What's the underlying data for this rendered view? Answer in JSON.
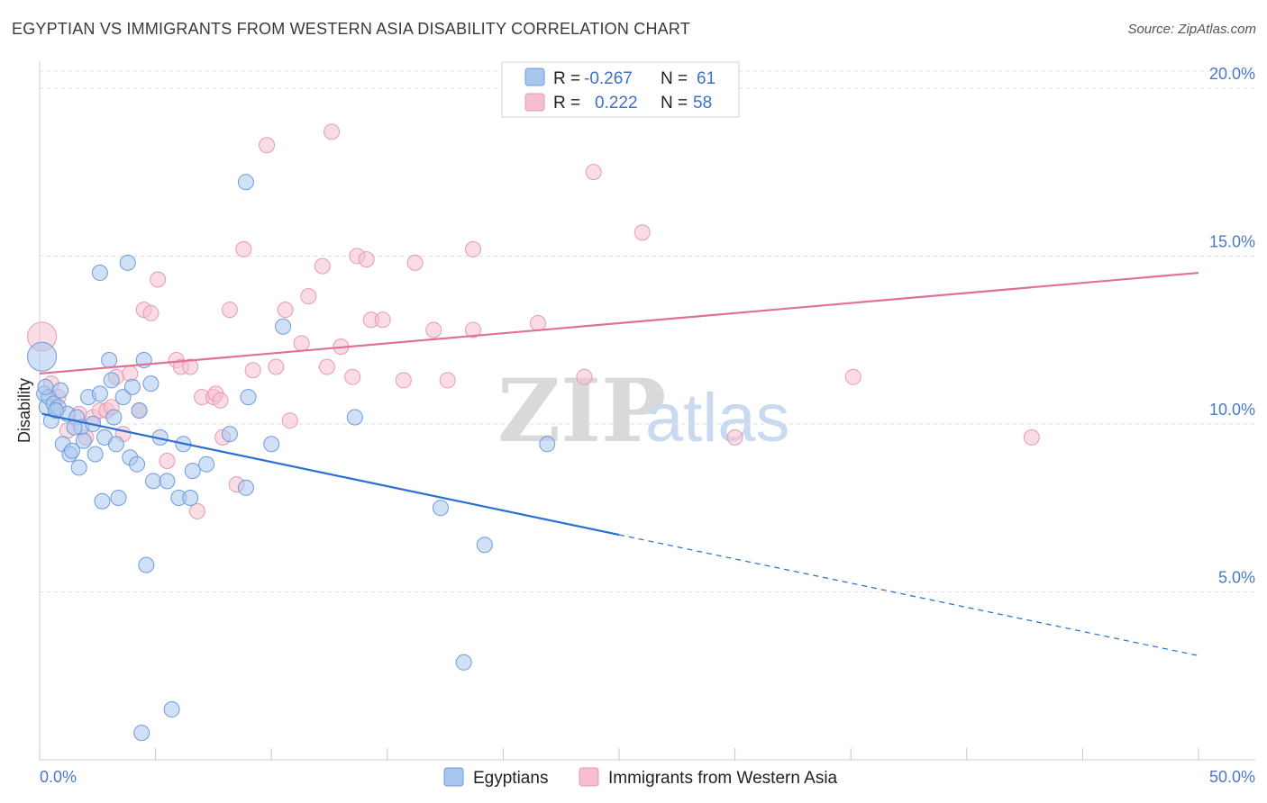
{
  "title": "EGYPTIAN VS IMMIGRANTS FROM WESTERN ASIA DISABILITY CORRELATION CHART",
  "source": "Source: ZipAtlas.com",
  "watermark": {
    "zip": "ZIP",
    "atlas": "atlas"
  },
  "colors": {
    "blue_fill": "#a9c6ef",
    "blue_stroke": "#6f9bd9",
    "blue_line": "#2a6fd1",
    "pink_fill": "#f6bfd0",
    "pink_stroke": "#e89ab2",
    "pink_line": "#e0709a",
    "tick_text": "#4a78c8",
    "grid": "#dddddd"
  },
  "legend": {
    "r_label": "R =",
    "n_label": "N =",
    "rows": [
      {
        "series": "Egyptians",
        "r": "-0.267",
        "n": "61"
      },
      {
        "series": "Immigrants from Western Asia",
        "r": "0.222",
        "n": "58"
      }
    ]
  },
  "chart_data": {
    "type": "scatter",
    "title": "EGYPTIAN VS IMMIGRANTS FROM WESTERN ASIA DISABILITY CORRELATION CHART",
    "xlabel": "",
    "ylabel": "Disability",
    "xlim": [
      0,
      50
    ],
    "ylim": [
      0,
      20.8
    ],
    "x_tick_labels": [
      "0.0%",
      "50.0%"
    ],
    "y_ticks": [
      5,
      10,
      15,
      20
    ],
    "y_tick_labels": [
      "5.0%",
      "10.0%",
      "15.0%",
      "20.0%"
    ],
    "grid": true,
    "legend_position": "top-center",
    "series": [
      {
        "name": "Egyptians",
        "color": "#a9c6ef",
        "trend": {
          "x0": 0.1,
          "y0": 10.3,
          "x1": 25,
          "y1": 6.7,
          "dashed_to_x": 50,
          "dashed_to_y": 3.1
        },
        "points": [
          {
            "x": 0.1,
            "y": 12.0,
            "big": true
          },
          {
            "x": 0.2,
            "y": 10.9
          },
          {
            "x": 0.3,
            "y": 10.5
          },
          {
            "x": 0.4,
            "y": 10.8
          },
          {
            "x": 0.5,
            "y": 10.1
          },
          {
            "x": 0.6,
            "y": 10.6
          },
          {
            "x": 0.8,
            "y": 10.5
          },
          {
            "x": 0.9,
            "y": 11.0
          },
          {
            "x": 1.0,
            "y": 9.4
          },
          {
            "x": 1.2,
            "y": 10.3
          },
          {
            "x": 1.3,
            "y": 9.1
          },
          {
            "x": 1.4,
            "y": 9.2
          },
          {
            "x": 1.6,
            "y": 10.2
          },
          {
            "x": 1.7,
            "y": 8.7
          },
          {
            "x": 1.8,
            "y": 9.9
          },
          {
            "x": 1.9,
            "y": 9.5
          },
          {
            "x": 2.1,
            "y": 10.8
          },
          {
            "x": 2.3,
            "y": 10.0
          },
          {
            "x": 2.4,
            "y": 9.1
          },
          {
            "x": 2.6,
            "y": 14.5
          },
          {
            "x": 2.6,
            "y": 10.9
          },
          {
            "x": 2.7,
            "y": 7.7
          },
          {
            "x": 2.8,
            "y": 9.6
          },
          {
            "x": 3.0,
            "y": 11.9
          },
          {
            "x": 3.1,
            "y": 11.3
          },
          {
            "x": 3.2,
            "y": 10.2
          },
          {
            "x": 3.3,
            "y": 9.4
          },
          {
            "x": 3.4,
            "y": 7.8
          },
          {
            "x": 3.6,
            "y": 10.8
          },
          {
            "x": 3.8,
            "y": 14.8
          },
          {
            "x": 3.9,
            "y": 9.0
          },
          {
            "x": 4.0,
            "y": 11.1
          },
          {
            "x": 4.2,
            "y": 8.8
          },
          {
            "x": 4.3,
            "y": 10.4
          },
          {
            "x": 4.4,
            "y": 0.8
          },
          {
            "x": 4.5,
            "y": 11.9
          },
          {
            "x": 4.6,
            "y": 5.8
          },
          {
            "x": 4.8,
            "y": 11.2
          },
          {
            "x": 4.9,
            "y": 8.3
          },
          {
            "x": 5.2,
            "y": 9.6
          },
          {
            "x": 5.5,
            "y": 8.3
          },
          {
            "x": 5.7,
            "y": 1.5
          },
          {
            "x": 6.0,
            "y": 7.8
          },
          {
            "x": 6.2,
            "y": 9.4
          },
          {
            "x": 6.5,
            "y": 7.8
          },
          {
            "x": 6.6,
            "y": 8.6
          },
          {
            "x": 7.2,
            "y": 8.8
          },
          {
            "x": 8.2,
            "y": 9.7
          },
          {
            "x": 8.9,
            "y": 8.1
          },
          {
            "x": 8.9,
            "y": 17.2
          },
          {
            "x": 9.0,
            "y": 10.8
          },
          {
            "x": 10.0,
            "y": 9.4
          },
          {
            "x": 10.5,
            "y": 12.9
          },
          {
            "x": 13.6,
            "y": 10.2
          },
          {
            "x": 17.3,
            "y": 7.5
          },
          {
            "x": 18.3,
            "y": 2.9
          },
          {
            "x": 19.2,
            "y": 6.4
          },
          {
            "x": 21.9,
            "y": 9.4
          },
          {
            "x": 0.7,
            "y": 10.4
          },
          {
            "x": 1.5,
            "y": 9.9
          },
          {
            "x": 0.25,
            "y": 11.1
          }
        ]
      },
      {
        "name": "Immigrants from Western Asia",
        "color": "#f6bfd0",
        "trend": {
          "x0": 0,
          "y0": 11.5,
          "x1": 50,
          "y1": 14.5
        },
        "points": [
          {
            "x": 0.1,
            "y": 12.6,
            "big": true
          },
          {
            "x": 0.5,
            "y": 11.2
          },
          {
            "x": 0.8,
            "y": 10.8
          },
          {
            "x": 1.2,
            "y": 9.8
          },
          {
            "x": 1.7,
            "y": 10.3
          },
          {
            "x": 2.0,
            "y": 9.6
          },
          {
            "x": 2.3,
            "y": 10.2
          },
          {
            "x": 2.6,
            "y": 10.4
          },
          {
            "x": 2.9,
            "y": 10.4
          },
          {
            "x": 3.1,
            "y": 10.5
          },
          {
            "x": 3.3,
            "y": 11.4
          },
          {
            "x": 3.6,
            "y": 9.7
          },
          {
            "x": 3.9,
            "y": 11.5
          },
          {
            "x": 4.3,
            "y": 10.4
          },
          {
            "x": 4.5,
            "y": 13.4
          },
          {
            "x": 4.8,
            "y": 13.3
          },
          {
            "x": 5.1,
            "y": 14.3
          },
          {
            "x": 5.5,
            "y": 8.9
          },
          {
            "x": 5.9,
            "y": 11.9
          },
          {
            "x": 6.1,
            "y": 11.7
          },
          {
            "x": 6.5,
            "y": 11.7
          },
          {
            "x": 6.8,
            "y": 7.4
          },
          {
            "x": 7.0,
            "y": 10.8
          },
          {
            "x": 7.5,
            "y": 10.8
          },
          {
            "x": 7.6,
            "y": 10.9
          },
          {
            "x": 7.8,
            "y": 10.7
          },
          {
            "x": 7.9,
            "y": 9.6
          },
          {
            "x": 8.2,
            "y": 13.4
          },
          {
            "x": 8.5,
            "y": 8.2
          },
          {
            "x": 8.8,
            "y": 15.2
          },
          {
            "x": 9.2,
            "y": 11.6
          },
          {
            "x": 9.8,
            "y": 18.3
          },
          {
            "x": 10.2,
            "y": 11.7
          },
          {
            "x": 10.6,
            "y": 13.4
          },
          {
            "x": 10.8,
            "y": 10.1
          },
          {
            "x": 11.3,
            "y": 12.4
          },
          {
            "x": 11.6,
            "y": 13.8
          },
          {
            "x": 12.2,
            "y": 14.7
          },
          {
            "x": 12.4,
            "y": 11.7
          },
          {
            "x": 12.6,
            "y": 18.7
          },
          {
            "x": 13.0,
            "y": 12.3
          },
          {
            "x": 13.5,
            "y": 11.4
          },
          {
            "x": 13.7,
            "y": 15.0
          },
          {
            "x": 14.1,
            "y": 14.9
          },
          {
            "x": 14.3,
            "y": 13.1
          },
          {
            "x": 14.8,
            "y": 13.1
          },
          {
            "x": 15.7,
            "y": 11.3
          },
          {
            "x": 16.2,
            "y": 14.8
          },
          {
            "x": 17.0,
            "y": 12.8
          },
          {
            "x": 17.6,
            "y": 11.3
          },
          {
            "x": 18.7,
            "y": 15.2
          },
          {
            "x": 18.7,
            "y": 12.8
          },
          {
            "x": 21.5,
            "y": 13.0
          },
          {
            "x": 23.5,
            "y": 11.4
          },
          {
            "x": 23.9,
            "y": 17.5
          },
          {
            "x": 26.0,
            "y": 15.7
          },
          {
            "x": 30.0,
            "y": 9.6
          },
          {
            "x": 35.1,
            "y": 11.4
          },
          {
            "x": 42.8,
            "y": 9.6
          }
        ]
      }
    ]
  }
}
